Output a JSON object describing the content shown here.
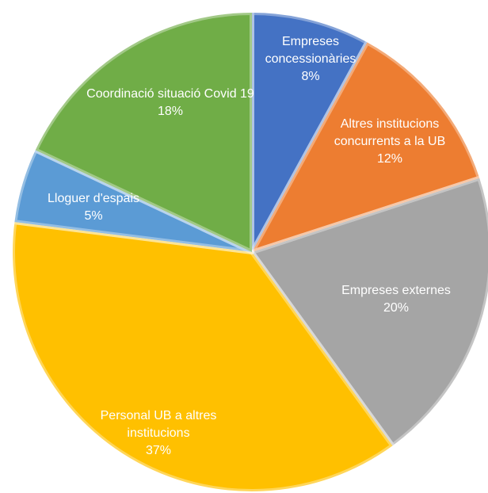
{
  "chart_data": {
    "type": "pie",
    "categories": [
      "Empreses concessionàries",
      "Altres institucions concurrents a la UB",
      "Empreses externes",
      "Personal UB a altres institucions",
      "Lloguer d'espais",
      "Coordinació situació Covid 19"
    ],
    "values": [
      8,
      12,
      20,
      37,
      5,
      18
    ],
    "value_labels": [
      "8%",
      "12%",
      "20%",
      "37%",
      "5%",
      "18%"
    ],
    "colors": [
      "#4472c4",
      "#ed7d31",
      "#a5a5a5",
      "#ffc000",
      "#5b9bd5",
      "#70ad47"
    ]
  }
}
